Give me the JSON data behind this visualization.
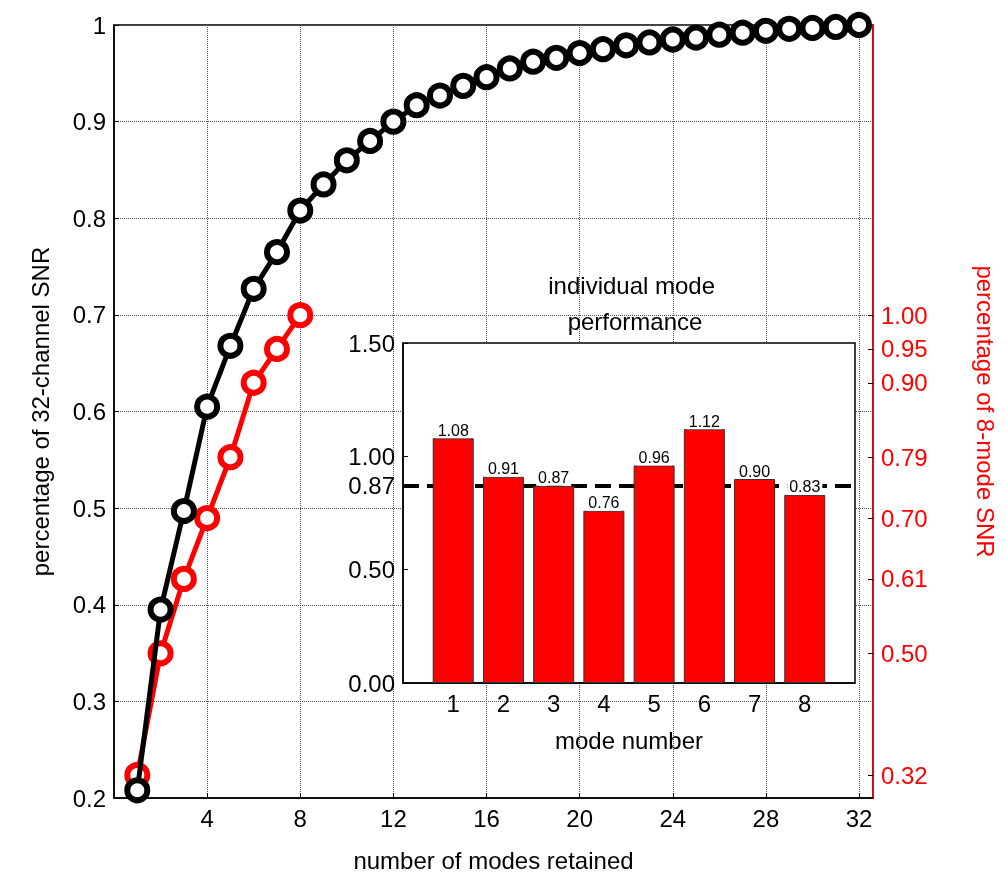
{
  "chart_data": [
    {
      "type": "line",
      "xlabel": "number of modes retained",
      "ylabel": "percentage of 32-channel SNR",
      "y2label": "percentage of 8-mode SNR",
      "xlim": [
        0,
        32.6
      ],
      "xticks": [
        4,
        8,
        12,
        16,
        20,
        24,
        28,
        32
      ],
      "ylim": [
        0.2,
        1
      ],
      "yticks": [
        0.2,
        0.3,
        0.4,
        0.5,
        0.6,
        0.7,
        0.8,
        0.9,
        1
      ],
      "y2lim": [
        0.286,
        1.429
      ],
      "y2ticks": [
        {
          "value": 0.32,
          "label": "0.32"
        },
        {
          "value": 0.5,
          "label": "0.50"
        },
        {
          "value": 0.61,
          "label": "0.61"
        },
        {
          "value": 0.7,
          "label": "0.70"
        },
        {
          "value": 0.79,
          "label": "0.79"
        },
        {
          "value": 0.9,
          "label": "0.90"
        },
        {
          "value": 0.95,
          "label": "0.95"
        },
        {
          "value": 1.0,
          "label": "1.00"
        }
      ],
      "grid": true,
      "marker": "circle",
      "line_style": "solid",
      "series": [
        {
          "color": "#000000",
          "x": [
            1,
            2,
            3,
            4,
            5,
            6,
            7,
            8,
            9,
            10,
            11,
            12,
            13,
            14,
            15,
            16,
            17,
            18,
            19,
            20,
            21,
            22,
            23,
            24,
            25,
            26,
            27,
            28,
            29,
            30,
            31,
            32
          ],
          "values": [
            0.208,
            0.395,
            0.497,
            0.605,
            0.668,
            0.727,
            0.765,
            0.808,
            0.835,
            0.86,
            0.88,
            0.9,
            0.917,
            0.927,
            0.937,
            0.946,
            0.955,
            0.962,
            0.966,
            0.971,
            0.975,
            0.979,
            0.982,
            0.985,
            0.987,
            0.99,
            0.992,
            0.994,
            0.996,
            0.997,
            0.998,
            1.0
          ]
        },
        {
          "color": "#ff0000",
          "axis": "y2",
          "x": [
            1,
            2,
            3,
            4,
            5,
            6,
            7,
            8
          ],
          "values": [
            0.32,
            0.5,
            0.61,
            0.7,
            0.79,
            0.9,
            0.95,
            1.0
          ]
        }
      ]
    },
    {
      "type": "bar",
      "title": "individual mode performance",
      "xlabel": "mode number",
      "categories": [
        "1",
        "2",
        "3",
        "4",
        "5",
        "6",
        "7",
        "8"
      ],
      "values": [
        1.08,
        0.91,
        0.87,
        0.76,
        0.96,
        1.12,
        0.9,
        0.83
      ],
      "color": "#ff0000",
      "ylim": [
        0,
        1.5
      ],
      "yticks": [
        {
          "value": 0,
          "label": "0.00"
        },
        {
          "value": 0.5,
          "label": "0.50"
        },
        {
          "value": 0.87,
          "label": "0.87"
        },
        {
          "value": 1.0,
          "label": "1.00"
        },
        {
          "value": 1.5,
          "label": "1.50"
        }
      ],
      "ref_lines": [
        {
          "axis": "y",
          "value": 0.87,
          "color": "#000000",
          "line_style": "dashed"
        }
      ],
      "value_labels": [
        "1.08",
        "0.91",
        "0.87",
        "0.76",
        "0.96",
        "1.12",
        "0.90",
        "0.83"
      ],
      "grid": false
    }
  ]
}
